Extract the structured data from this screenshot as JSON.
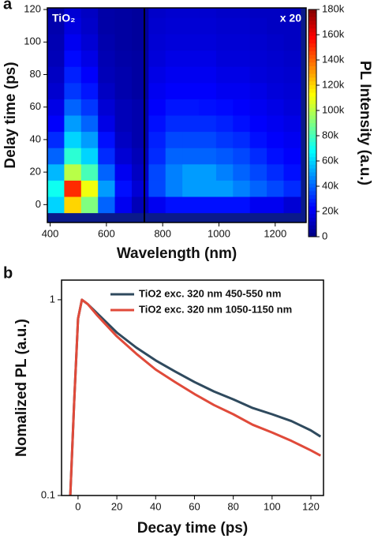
{
  "chart_data": [
    {
      "type": "heatmap",
      "panel_label": "a",
      "xlabel": "Wavelength (nm)",
      "ylabel": "Delay time (ps)",
      "annotations": [
        "TiO₂",
        "x 20"
      ],
      "colormap": "jet",
      "xlim": [
        390,
        1310
      ],
      "xticks": [
        400,
        600,
        800,
        1000,
        1200
      ],
      "ylim": [
        -11,
        121
      ],
      "yticks": [
        0,
        20,
        40,
        60,
        80,
        100,
        120
      ],
      "x": [
        420,
        480,
        540,
        600,
        660,
        720,
        780,
        840,
        900,
        960,
        1020,
        1080,
        1140,
        1200,
        1260
      ],
      "y": [
        0,
        10,
        20,
        30,
        40,
        50,
        60,
        70,
        80,
        90,
        100,
        110,
        120
      ],
      "values": [
        [
          60000,
          120000,
          90000,
          40000,
          20000,
          10000,
          20000,
          25000,
          25000,
          25000,
          25000,
          25000,
          20000,
          20000,
          15000
        ],
        [
          70000,
          150000,
          110000,
          50000,
          25000,
          15000,
          35000,
          45000,
          50000,
          50000,
          50000,
          45000,
          40000,
          35000,
          30000
        ],
        [
          55000,
          100000,
          80000,
          40000,
          20000,
          12000,
          35000,
          45000,
          50000,
          50000,
          45000,
          40000,
          35000,
          30000,
          25000
        ],
        [
          40000,
          75000,
          60000,
          30000,
          15000,
          10000,
          30000,
          40000,
          40000,
          40000,
          38000,
          35000,
          30000,
          25000,
          22000
        ],
        [
          30000,
          60000,
          50000,
          25000,
          12000,
          8000,
          28000,
          35000,
          35000,
          35000,
          32000,
          30000,
          25000,
          22000,
          20000
        ],
        [
          22000,
          50000,
          40000,
          18000,
          10000,
          8000,
          25000,
          30000,
          30000,
          30000,
          28000,
          25000,
          22000,
          20000,
          18000
        ],
        [
          18000,
          40000,
          32000,
          15000,
          10000,
          8000,
          22000,
          26000,
          26000,
          25000,
          24000,
          22000,
          20000,
          18000,
          16000
        ],
        [
          14000,
          32000,
          26000,
          12000,
          8000,
          6000,
          20000,
          22000,
          22000,
          22000,
          20000,
          20000,
          18000,
          16000,
          15000
        ],
        [
          12000,
          28000,
          22000,
          10000,
          8000,
          6000,
          18000,
          20000,
          20000,
          20000,
          18000,
          18000,
          16000,
          15000,
          14000
        ],
        [
          10000,
          24000,
          18000,
          9000,
          7000,
          6000,
          16000,
          18000,
          18000,
          18000,
          16000,
          16000,
          15000,
          14000,
          13000
        ],
        [
          9000,
          20000,
          15000,
          8000,
          6000,
          5000,
          15000,
          16000,
          16000,
          16000,
          15000,
          15000,
          14000,
          13000,
          12000
        ],
        [
          8000,
          17000,
          13000,
          7000,
          6000,
          5000,
          14000,
          15000,
          15000,
          15000,
          14000,
          14000,
          13000,
          12000,
          12000
        ],
        [
          7000,
          15000,
          12000,
          7000,
          6000,
          5000,
          13000,
          14000,
          14000,
          14000,
          13000,
          13000,
          12000,
          12000,
          11000
        ]
      ],
      "colorbar": {
        "label": "PL Intensity (a.u.)",
        "lim": [
          0,
          180000
        ],
        "ticks": [
          0,
          {
            "value": 20000,
            "label": "20k"
          },
          {
            "value": 40000,
            "label": "40k"
          },
          {
            "value": 60000,
            "label": "60k"
          },
          {
            "value": 80000,
            "label": "80k"
          },
          {
            "value": 100000,
            "label": "100k"
          },
          {
            "value": 120000,
            "label": "120k"
          },
          {
            "value": 140000,
            "label": "140k"
          },
          {
            "value": 160000,
            "label": "160k"
          },
          {
            "value": 180000,
            "label": "180k"
          }
        ]
      }
    },
    {
      "type": "line",
      "panel_label": "b",
      "xlabel": "Decay time (ps)",
      "ylabel": "Nomalized PL (a.u.)",
      "log_y": true,
      "legend": "upper right",
      "xlim": [
        -8.5,
        126.5
      ],
      "xticks": [
        0,
        20,
        40,
        60,
        80,
        100,
        120
      ],
      "ylim": [
        0.1,
        1.26
      ],
      "yticks": [
        0.1,
        1
      ],
      "x": [
        -4,
        -2,
        0,
        2,
        5,
        10,
        20,
        30,
        40,
        50,
        60,
        70,
        80,
        90,
        100,
        110,
        120,
        125
      ],
      "series": [
        {
          "name": "TiO2 exc. 320 nm 450-550 nm",
          "color": "#2f4a5e",
          "values": [
            0.1,
            0.3,
            0.8,
            1.0,
            0.95,
            0.85,
            0.68,
            0.57,
            0.49,
            0.43,
            0.38,
            0.34,
            0.31,
            0.28,
            0.26,
            0.24,
            0.215,
            0.2
          ]
        },
        {
          "name": "TiO2 exc. 320 nm 1050-1150 nm",
          "color": "#e04a3a",
          "values": [
            0.1,
            0.3,
            0.8,
            1.0,
            0.95,
            0.83,
            0.65,
            0.53,
            0.44,
            0.38,
            0.33,
            0.29,
            0.26,
            0.23,
            0.21,
            0.19,
            0.17,
            0.16
          ]
        }
      ]
    }
  ]
}
